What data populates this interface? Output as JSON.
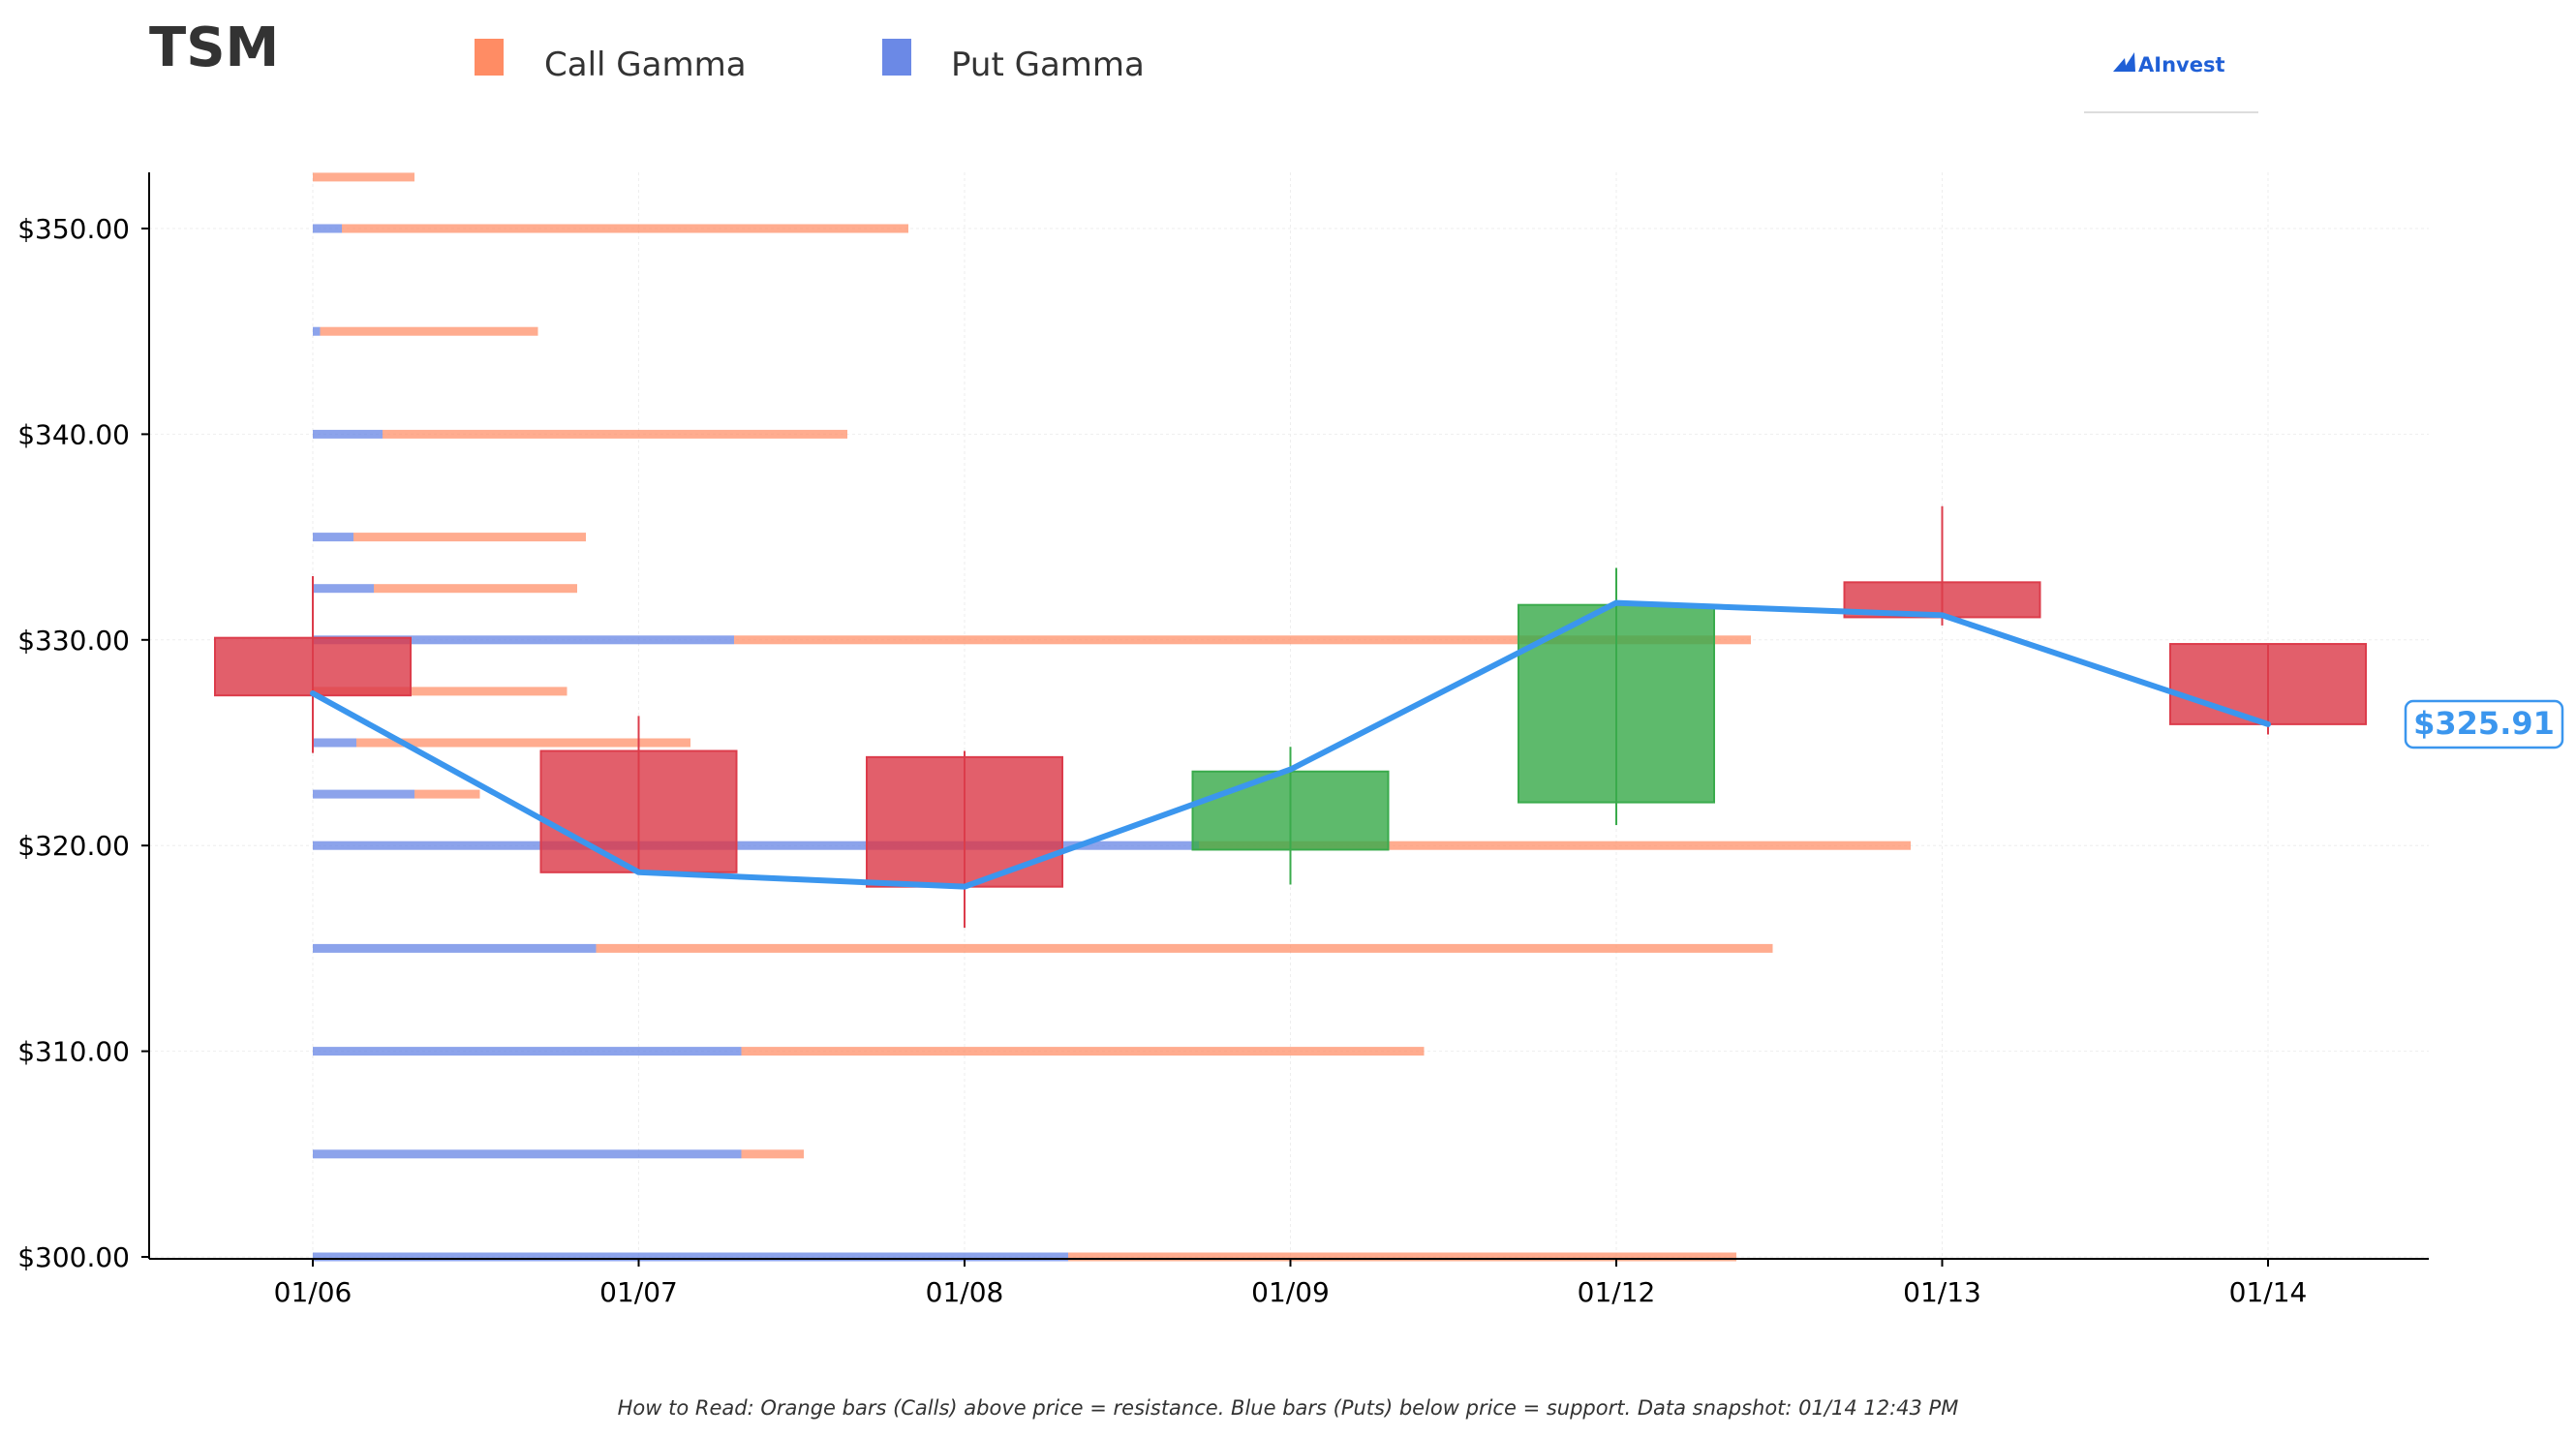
{
  "header": {
    "ticker": "TSM",
    "brand": "AInvest"
  },
  "legend": {
    "call_label": "Call Gamma",
    "put_label": "Put Gamma"
  },
  "footer": {
    "note": "How to Read: Orange bars (Calls) above price = resistance. Blue bars (Puts) below price = support. Data snapshot: 01/14 12:43 PM"
  },
  "colors": {
    "call": "#ff8c64",
    "put": "#6b89e6",
    "up": "#3aab4c",
    "down": "#dc3c4b",
    "price_line": "#3b96ee",
    "brand": "#1f5fd6"
  },
  "chart_data": {
    "type": "candlestick",
    "ylim": [
      300,
      352.5
    ],
    "y_ticks": [
      300,
      310,
      320,
      330,
      340,
      350
    ],
    "y_tick_labels": [
      "$300.00",
      "$310.00",
      "$320.00",
      "$330.00",
      "$340.00",
      "$350.00"
    ],
    "categories": [
      "01/06",
      "01/07",
      "01/08",
      "01/09",
      "01/12",
      "01/13",
      "01/14"
    ],
    "candles": [
      {
        "date": "01/06",
        "open": 330.1,
        "close": 327.3,
        "high": 333.1,
        "low": 324.5
      },
      {
        "date": "01/07",
        "open": 324.6,
        "close": 318.7,
        "high": 326.3,
        "low": 318.7
      },
      {
        "date": "01/08",
        "open": 324.3,
        "close": 318.0,
        "high": 324.6,
        "low": 316.0
      },
      {
        "date": "01/09",
        "open": 319.8,
        "close": 323.6,
        "high": 324.8,
        "low": 318.1
      },
      {
        "date": "01/12",
        "open": 322.1,
        "close": 331.7,
        "high": 333.5,
        "low": 321.0
      },
      {
        "date": "01/13",
        "open": 332.8,
        "close": 331.1,
        "high": 336.5,
        "low": 330.7
      },
      {
        "date": "01/14",
        "open": 329.8,
        "close": 325.9,
        "high": 329.8,
        "low": 325.4
      }
    ],
    "price_line": {
      "values": [
        327.4,
        318.7,
        318.0,
        323.7,
        331.8,
        331.2,
        325.9
      ]
    },
    "last_price_label": "$325.91",
    "gamma_series": [
      {
        "name": "Put Gamma",
        "strikes": [
          352.5,
          350,
          345,
          340,
          335,
          332.5,
          330,
          327.5,
          325,
          322.5,
          320,
          315,
          310,
          305,
          300
        ],
        "values": [
          0,
          0.2,
          0.05,
          0.48,
          0.28,
          0.42,
          2.9,
          0,
          0.3,
          0.7,
          6.1,
          1.95,
          2.95,
          2.95,
          5.2
        ]
      },
      {
        "name": "Call Gamma",
        "strikes": [
          352.5,
          350,
          345,
          340,
          335,
          332.5,
          330,
          327.5,
          325,
          322.5,
          320,
          315,
          310,
          305,
          300
        ],
        "values": [
          0.7,
          3.9,
          1.5,
          3.2,
          1.6,
          1.4,
          7.0,
          1.75,
          2.3,
          0.45,
          4.9,
          8.1,
          4.7,
          0.43,
          4.6
        ]
      }
    ],
    "grid": true
  }
}
